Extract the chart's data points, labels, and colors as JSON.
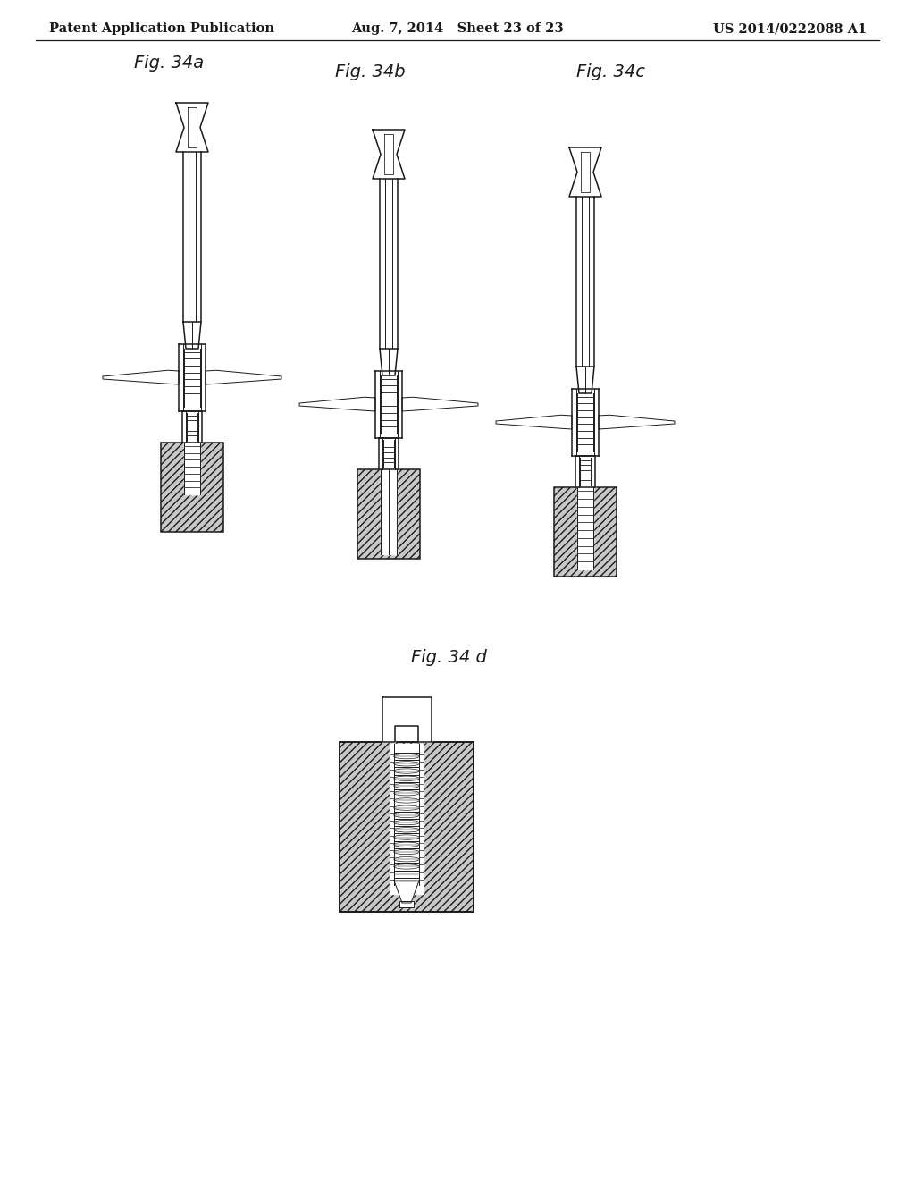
{
  "background_color": "#ffffff",
  "header_left": "Patent Application Publication",
  "header_center": "Aug. 7, 2014   Sheet 23 of 23",
  "header_right": "US 2014/0222088 A1",
  "header_fontsize": 10.5,
  "line_color": "#1a1a1a",
  "fig_label_fontsize": 14
}
